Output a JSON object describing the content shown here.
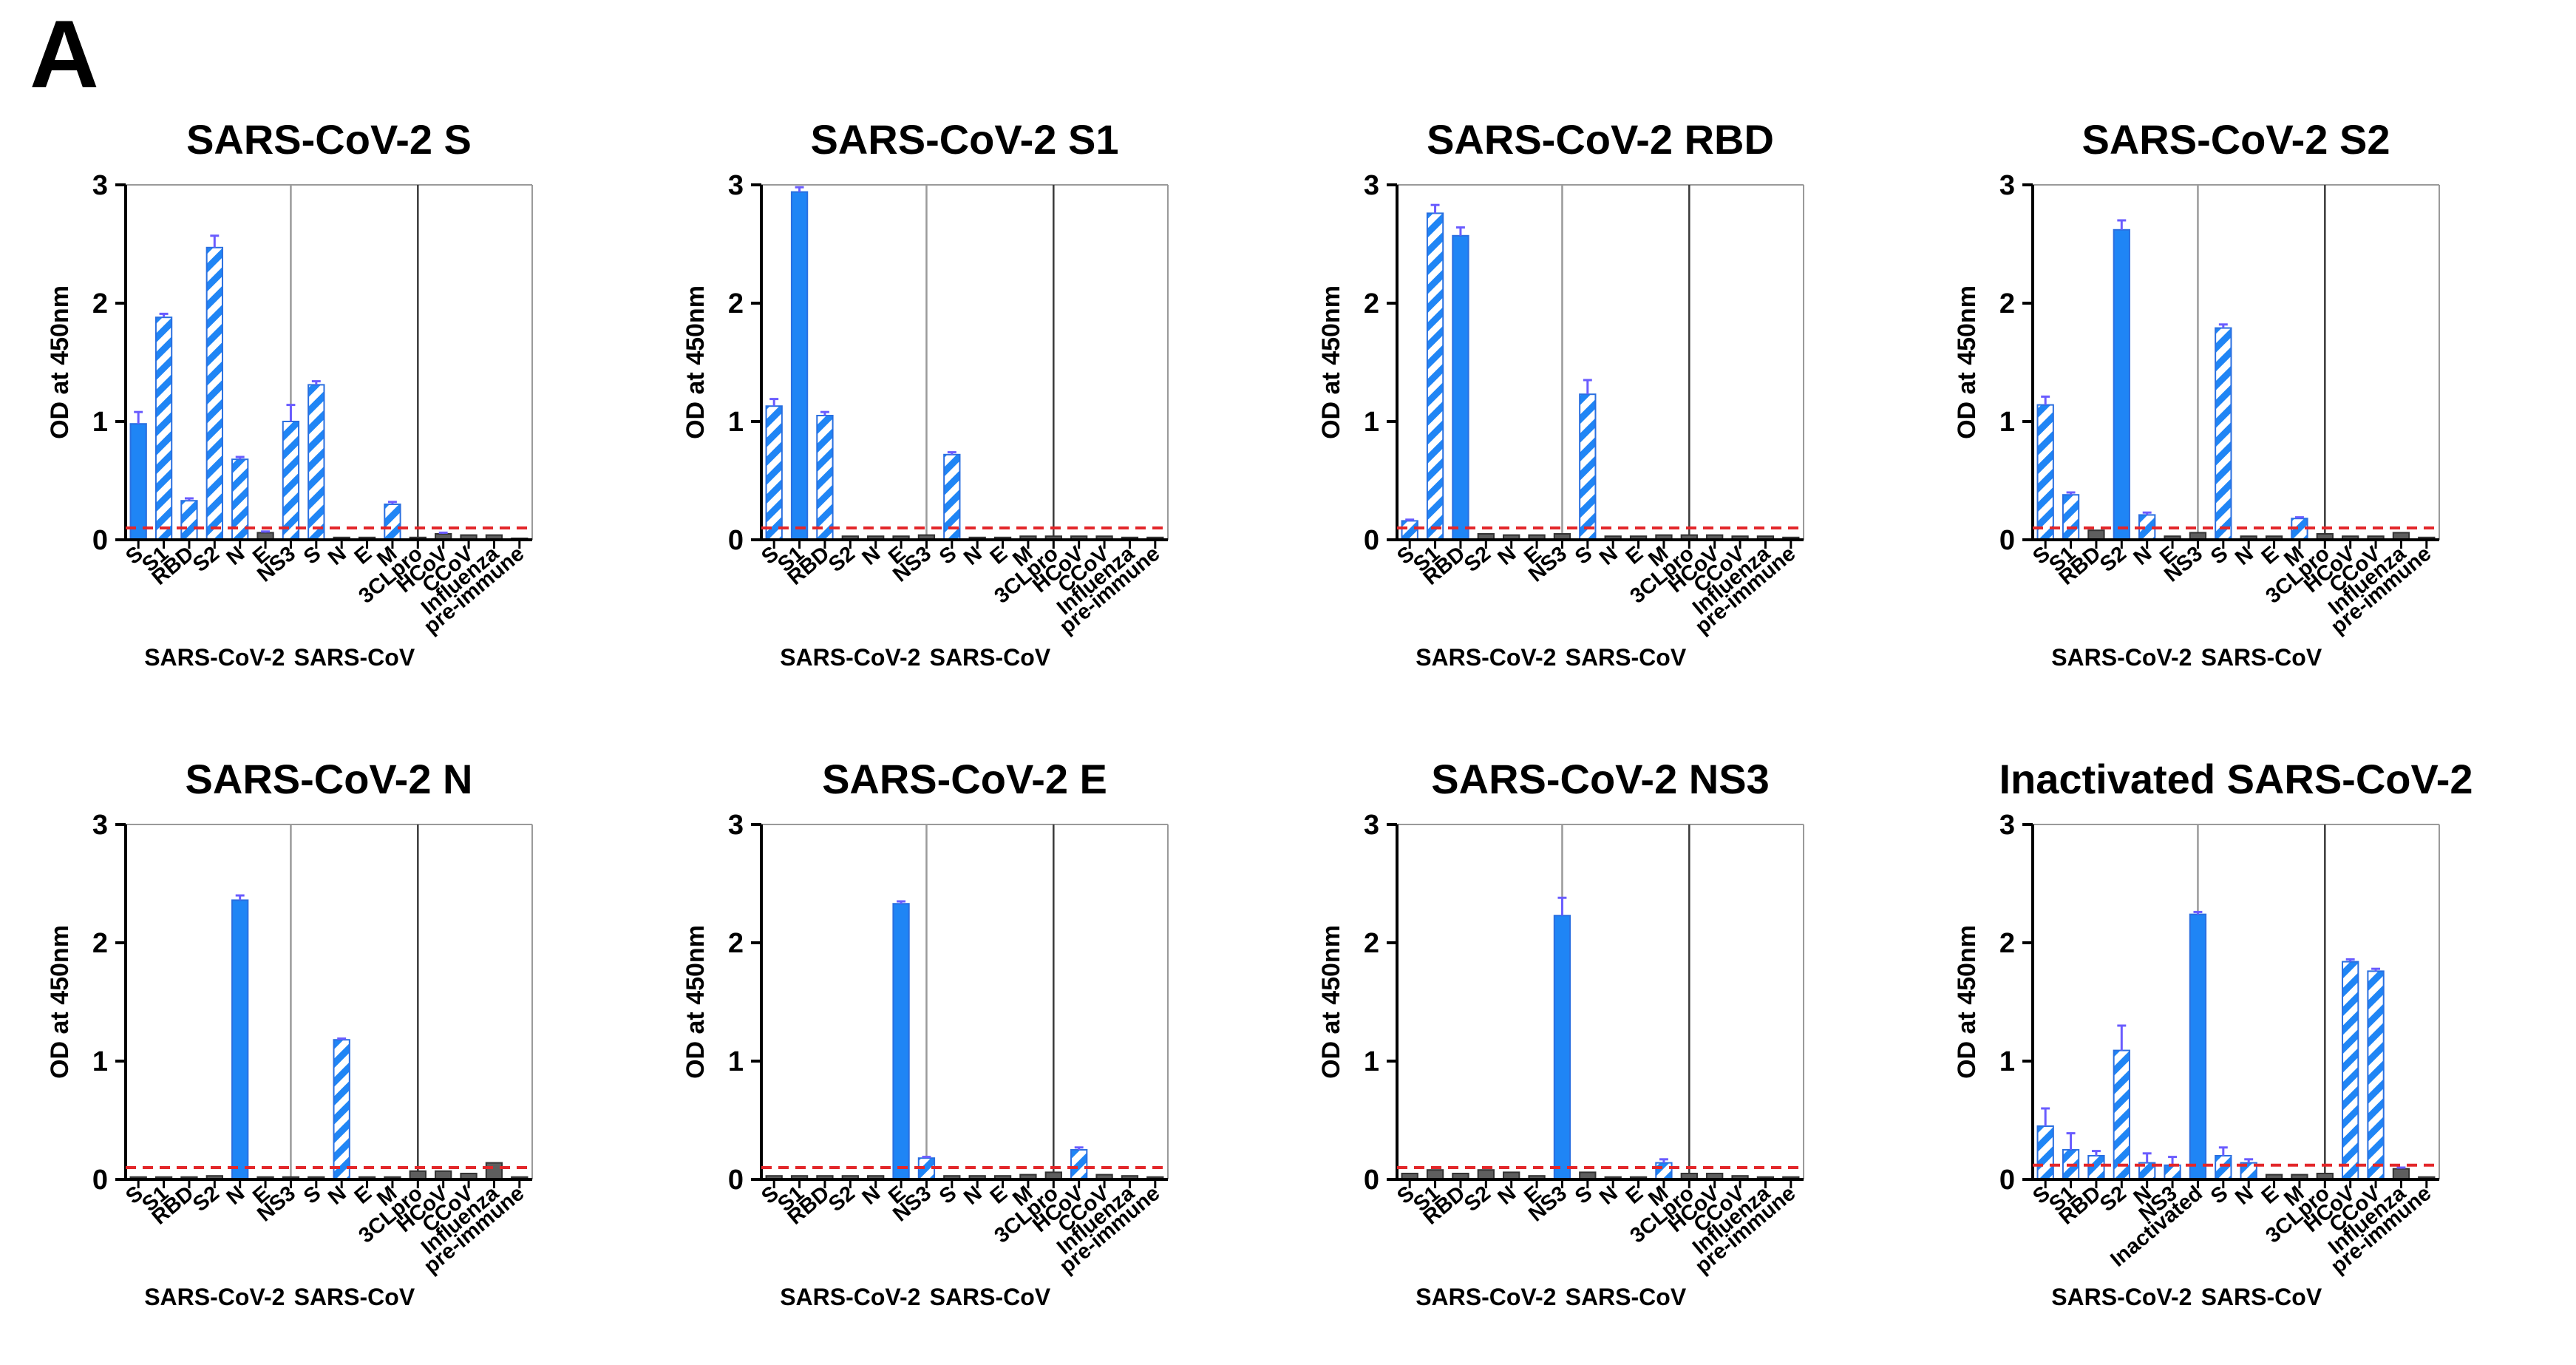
{
  "panel_label": "A",
  "colors": {
    "blue": "#1f85f5",
    "blue_hatch_bg": "#ffffff",
    "grey": "#5e5e5e",
    "error_bar": "#6a5cff",
    "cutoff": "#e3272a",
    "divider_dark": "#3a3a3a",
    "divider_light": "#9a9a9a"
  },
  "chart_data": [
    {
      "type": "bar",
      "title": "SARS-CoV-2 S",
      "ylabel": "OD at 450nm",
      "ylim": [
        0,
        3
      ],
      "yticks": [
        "0",
        "1",
        "2",
        "3"
      ],
      "cutoff": 0.1,
      "categories": [
        "S",
        "S1",
        "RBD",
        "S2",
        "N",
        "E",
        "NS3",
        "S",
        "N",
        "E",
        "M",
        "3CLpro",
        "HCoV",
        "CCoV",
        "Influenza",
        "pre-immune"
      ],
      "values": [
        0.98,
        1.88,
        0.33,
        2.47,
        0.68,
        0.06,
        1.0,
        1.31,
        0.02,
        0.02,
        0.3,
        0.02,
        0.05,
        0.04,
        0.04,
        0.01
      ],
      "errors": [
        0.1,
        0.03,
        0.02,
        0.1,
        0.02,
        0.01,
        0.14,
        0.03,
        0.0,
        0.0,
        0.02,
        0.0,
        0.01,
        0.0,
        0.0,
        0.0
      ],
      "styles": [
        "solid",
        "hatch",
        "hatch",
        "hatch",
        "hatch",
        "grey",
        "hatch",
        "hatch",
        "grey",
        "grey",
        "hatch",
        "grey",
        "grey",
        "grey",
        "grey",
        "grey"
      ],
      "groups": [
        "SARS-CoV-2",
        "SARS-CoV"
      ]
    },
    {
      "type": "bar",
      "title": "SARS-CoV-2 S1",
      "ylabel": "OD at 450nm",
      "ylim": [
        0,
        3
      ],
      "yticks": [
        "0",
        "1",
        "2",
        "3"
      ],
      "cutoff": 0.1,
      "categories": [
        "S",
        "S1",
        "RBD",
        "S2",
        "N",
        "E",
        "NS3",
        "S",
        "N",
        "E",
        "M",
        "3CLpro",
        "HCoV",
        "CCoV",
        "Influenza",
        "pre-immune"
      ],
      "values": [
        1.13,
        2.94,
        1.05,
        0.03,
        0.03,
        0.03,
        0.04,
        0.72,
        0.02,
        0.02,
        0.03,
        0.03,
        0.03,
        0.03,
        0.02,
        0.02
      ],
      "errors": [
        0.06,
        0.04,
        0.03,
        0.0,
        0.0,
        0.0,
        0.0,
        0.02,
        0.0,
        0.0,
        0.0,
        0.0,
        0.0,
        0.0,
        0.0,
        0.0
      ],
      "styles": [
        "hatch",
        "solid",
        "hatch",
        "grey",
        "grey",
        "grey",
        "grey",
        "hatch",
        "grey",
        "grey",
        "grey",
        "grey",
        "grey",
        "grey",
        "grey",
        "grey"
      ],
      "groups": [
        "SARS-CoV-2",
        "SARS-CoV"
      ]
    },
    {
      "type": "bar",
      "title": "SARS-CoV-2 RBD",
      "ylabel": "OD at 450nm",
      "ylim": [
        0,
        3
      ],
      "yticks": [
        "0",
        "1",
        "2",
        "3"
      ],
      "cutoff": 0.1,
      "categories": [
        "S",
        "S1",
        "RBD",
        "S2",
        "N",
        "E",
        "NS3",
        "S",
        "N",
        "E",
        "M",
        "3CLpro",
        "HCoV",
        "CCoV",
        "Influenza",
        "pre-immune"
      ],
      "values": [
        0.16,
        2.76,
        2.57,
        0.05,
        0.04,
        0.04,
        0.05,
        1.23,
        0.03,
        0.03,
        0.04,
        0.04,
        0.04,
        0.03,
        0.03,
        0.02
      ],
      "errors": [
        0.01,
        0.07,
        0.07,
        0.0,
        0.0,
        0.0,
        0.0,
        0.12,
        0.0,
        0.0,
        0.0,
        0.0,
        0.0,
        0.0,
        0.0,
        0.0
      ],
      "styles": [
        "hatch",
        "hatch",
        "solid",
        "grey",
        "grey",
        "grey",
        "grey",
        "hatch",
        "grey",
        "grey",
        "grey",
        "grey",
        "grey",
        "grey",
        "grey",
        "grey"
      ],
      "groups": [
        "SARS-CoV-2",
        "SARS-CoV"
      ]
    },
    {
      "type": "bar",
      "title": "SARS-CoV-2 S2",
      "ylabel": "OD at 450nm",
      "ylim": [
        0,
        3
      ],
      "yticks": [
        "0",
        "1",
        "2",
        "3"
      ],
      "cutoff": 0.1,
      "categories": [
        "S",
        "S1",
        "RBD",
        "S2",
        "N",
        "E",
        "NS3",
        "S",
        "N",
        "E",
        "M",
        "3CLpro",
        "HCoV",
        "CCoV",
        "Influenza",
        "pre-immune"
      ],
      "values": [
        1.14,
        0.38,
        0.08,
        2.62,
        0.21,
        0.03,
        0.06,
        1.79,
        0.03,
        0.03,
        0.18,
        0.05,
        0.03,
        0.03,
        0.06,
        0.02
      ],
      "errors": [
        0.07,
        0.02,
        0.0,
        0.08,
        0.02,
        0.0,
        0.0,
        0.03,
        0.0,
        0.0,
        0.01,
        0.0,
        0.0,
        0.0,
        0.0,
        0.0
      ],
      "styles": [
        "hatch",
        "hatch",
        "grey",
        "solid",
        "hatch",
        "grey",
        "grey",
        "hatch",
        "grey",
        "grey",
        "hatch",
        "grey",
        "grey",
        "grey",
        "grey",
        "grey"
      ],
      "groups": [
        "SARS-CoV-2",
        "SARS-CoV"
      ]
    },
    {
      "type": "bar",
      "title": "SARS-CoV-2 N",
      "ylabel": "OD at 450nm",
      "ylim": [
        0,
        3
      ],
      "yticks": [
        "0",
        "1",
        "2",
        "3"
      ],
      "cutoff": 0.1,
      "categories": [
        "S",
        "S1",
        "RBD",
        "S2",
        "N",
        "E",
        "NS3",
        "S",
        "N",
        "E",
        "M",
        "3CLpro",
        "HCoV",
        "CCoV",
        "Influenza",
        "pre-immune"
      ],
      "values": [
        0.02,
        0.02,
        0.02,
        0.03,
        2.36,
        0.02,
        0.02,
        0.02,
        1.18,
        0.02,
        0.02,
        0.07,
        0.07,
        0.05,
        0.14,
        0.02
      ],
      "errors": [
        0.0,
        0.0,
        0.0,
        0.0,
        0.04,
        0.0,
        0.0,
        0.0,
        0.01,
        0.0,
        0.0,
        0.0,
        0.0,
        0.0,
        0.0,
        0.0
      ],
      "styles": [
        "grey",
        "grey",
        "grey",
        "grey",
        "solid",
        "grey",
        "grey",
        "grey",
        "hatch",
        "grey",
        "grey",
        "grey",
        "grey",
        "grey",
        "grey",
        "grey"
      ],
      "groups": [
        "SARS-CoV-2",
        "SARS-CoV"
      ]
    },
    {
      "type": "bar",
      "title": "SARS-CoV-2 E",
      "ylabel": "OD at 450nm",
      "ylim": [
        0,
        3
      ],
      "yticks": [
        "0",
        "1",
        "2",
        "3"
      ],
      "cutoff": 0.1,
      "categories": [
        "S",
        "S1",
        "RBD",
        "S2",
        "N",
        "E",
        "NS3",
        "S",
        "N",
        "E",
        "M",
        "3CLpro",
        "HCoV",
        "CCoV",
        "Influenza",
        "pre-immune"
      ],
      "values": [
        0.03,
        0.03,
        0.03,
        0.03,
        0.03,
        2.33,
        0.18,
        0.03,
        0.03,
        0.03,
        0.04,
        0.06,
        0.25,
        0.04,
        0.03,
        0.02
      ],
      "errors": [
        0.0,
        0.0,
        0.0,
        0.0,
        0.0,
        0.02,
        0.01,
        0.0,
        0.0,
        0.0,
        0.0,
        0.0,
        0.02,
        0.0,
        0.0,
        0.0
      ],
      "styles": [
        "grey",
        "grey",
        "grey",
        "grey",
        "grey",
        "solid",
        "hatch",
        "grey",
        "grey",
        "grey",
        "grey",
        "grey",
        "hatch",
        "grey",
        "grey",
        "grey"
      ],
      "groups": [
        "SARS-CoV-2",
        "SARS-CoV"
      ]
    },
    {
      "type": "bar",
      "title": "SARS-CoV-2 NS3",
      "ylabel": "OD at 450nm",
      "ylim": [
        0,
        3
      ],
      "yticks": [
        "0",
        "1",
        "2",
        "3"
      ],
      "cutoff": 0.1,
      "categories": [
        "S",
        "S1",
        "RBD",
        "S2",
        "N",
        "E",
        "NS3",
        "S",
        "N",
        "E",
        "M",
        "3CLpro",
        "HCoV",
        "CCoV",
        "Influenza",
        "pre-immune"
      ],
      "values": [
        0.05,
        0.08,
        0.05,
        0.08,
        0.06,
        0.03,
        2.23,
        0.06,
        0.02,
        0.02,
        0.14,
        0.05,
        0.05,
        0.03,
        0.02,
        0.02
      ],
      "errors": [
        0.0,
        0.0,
        0.0,
        0.0,
        0.0,
        0.0,
        0.15,
        0.0,
        0.0,
        0.0,
        0.03,
        0.0,
        0.0,
        0.0,
        0.0,
        0.0
      ],
      "styles": [
        "grey",
        "grey",
        "grey",
        "grey",
        "grey",
        "grey",
        "solid",
        "grey",
        "grey",
        "grey",
        "hatch",
        "grey",
        "grey",
        "grey",
        "grey",
        "grey"
      ],
      "groups": [
        "SARS-CoV-2",
        "SARS-CoV"
      ]
    },
    {
      "type": "bar",
      "title": "Inactivated SARS-CoV-2",
      "ylabel": "OD at 450nm",
      "ylim": [
        0,
        3
      ],
      "yticks": [
        "0",
        "1",
        "2",
        "3"
      ],
      "cutoff": 0.12,
      "categories": [
        "S",
        "S1",
        "RBD",
        "S2",
        "N",
        "NS3",
        "Inactivated",
        "S",
        "N",
        "E",
        "M",
        "3CLpro",
        "HCoV",
        "CCoV",
        "Influenza",
        "pre-immune"
      ],
      "values": [
        0.45,
        0.25,
        0.2,
        1.09,
        0.14,
        0.12,
        2.24,
        0.2,
        0.14,
        0.04,
        0.04,
        0.05,
        1.84,
        1.76,
        0.09,
        0.02
      ],
      "errors": [
        0.15,
        0.14,
        0.04,
        0.21,
        0.08,
        0.07,
        0.02,
        0.07,
        0.03,
        0.0,
        0.0,
        0.0,
        0.02,
        0.02,
        0.01,
        0.0
      ],
      "styles": [
        "hatch",
        "hatch",
        "hatch",
        "hatch",
        "hatch",
        "hatch",
        "solid",
        "hatch",
        "hatch",
        "grey",
        "grey",
        "grey",
        "hatch",
        "hatch",
        "grey",
        "grey"
      ],
      "groups": [
        "SARS-CoV-2",
        "SARS-CoV"
      ]
    }
  ]
}
